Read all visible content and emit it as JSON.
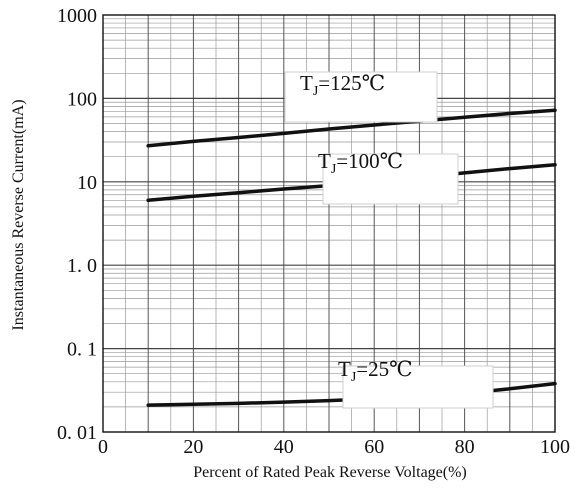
{
  "chart_data": {
    "type": "line",
    "title": "",
    "xlabel": "Percent of Rated Peak Reverse Voltage(%)",
    "ylabel": "Instantaneous Reverse Current(mA)",
    "xlim": [
      0,
      100
    ],
    "ylim": [
      0.01,
      1000
    ],
    "yscale": "log",
    "grid": true,
    "x_ticks": [
      "0",
      "20",
      "40",
      "60",
      "80",
      "100"
    ],
    "y_ticks": [
      "0. 01",
      "0. 1",
      "1. 0",
      "10",
      "100",
      "1000"
    ],
    "series": [
      {
        "name": "TJ=125℃",
        "label_main": "T",
        "label_sub": "J",
        "label_tail": "=125℃",
        "x": [
          10,
          20,
          30,
          40,
          50,
          60,
          70,
          80,
          90,
          100
        ],
        "y": [
          27,
          30.5,
          34,
          38,
          43,
          48,
          53.5,
          59.5,
          66,
          72
        ]
      },
      {
        "name": "TJ=100℃",
        "label_main": "T",
        "label_sub": "J",
        "label_tail": "=100℃",
        "x": [
          10,
          20,
          30,
          40,
          50,
          60,
          70,
          80,
          90,
          100
        ],
        "y": [
          6,
          6.7,
          7.4,
          8.2,
          9.0,
          10.0,
          11.3,
          12.8,
          14.4,
          16
        ]
      },
      {
        "name": "TJ=25℃",
        "label_main": "T",
        "label_sub": "J",
        "label_tail": "=25℃",
        "x": [
          10,
          20,
          30,
          40,
          50,
          60,
          70,
          80,
          90,
          100
        ],
        "y": [
          0.021,
          0.0215,
          0.022,
          0.0228,
          0.0238,
          0.025,
          0.0268,
          0.029,
          0.033,
          0.038
        ]
      }
    ]
  }
}
